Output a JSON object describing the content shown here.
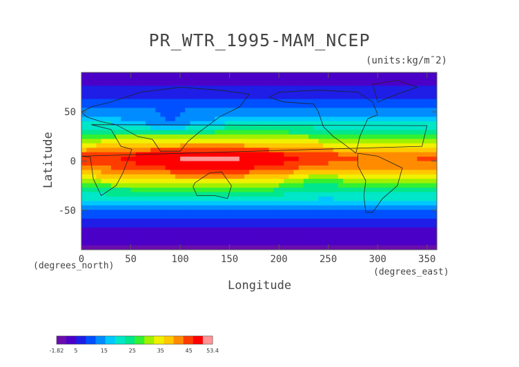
{
  "title": "PR_WTR_1995-MAM_NCEP",
  "units": "(units:kg/m¯2)",
  "y_axis": {
    "label": "Latitude",
    "unit_label": "(degrees_north)",
    "range": [
      -90,
      90
    ],
    "ticks": [
      "50",
      "0",
      "-50"
    ]
  },
  "x_axis": {
    "label": "Longitude",
    "unit_label": "(degrees_east)",
    "range": [
      0,
      360
    ],
    "ticks": [
      "0",
      "50",
      "100",
      "150",
      "200",
      "250",
      "300",
      "350"
    ]
  },
  "colorbar": {
    "min_label": "-1.82",
    "max_label": "53.4",
    "labels": [
      "-1.82",
      "5",
      "15",
      "25",
      "35",
      "45",
      "53.4"
    ],
    "colors": [
      "#6a0dad",
      "#4b00c8",
      "#1e1ee6",
      "#0050ff",
      "#008cff",
      "#00c8ff",
      "#00e6c8",
      "#00e68c",
      "#32f032",
      "#a0f000",
      "#f0f000",
      "#ffc800",
      "#ff8c00",
      "#ff3c00",
      "#ff0000",
      "#ff9696"
    ]
  },
  "map_data": {
    "variable": "precipitable water",
    "season": "1995 MAM",
    "value_range": [
      -1.82,
      53.4
    ],
    "pattern": [
      {
        "lat": 90,
        "value": 2
      },
      {
        "lat": 75,
        "value": 5
      },
      {
        "lat": 60,
        "value": 10
      },
      {
        "lat": 45,
        "value": 15
      },
      {
        "lat": 30,
        "value": 25
      },
      {
        "lat": 15,
        "value": 38
      },
      {
        "lat": 5,
        "value": 47
      },
      {
        "lat": -5,
        "value": 45
      },
      {
        "lat": -15,
        "value": 38
      },
      {
        "lat": -30,
        "value": 25
      },
      {
        "lat": -45,
        "value": 15
      },
      {
        "lat": -60,
        "value": 8
      },
      {
        "lat": -75,
        "value": 3
      },
      {
        "lat": -90,
        "value": 1
      }
    ]
  }
}
